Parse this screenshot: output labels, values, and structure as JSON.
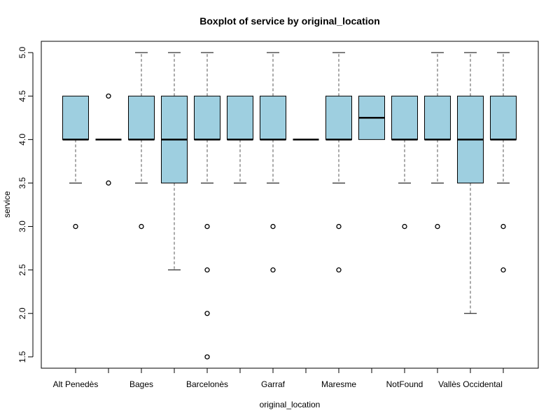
{
  "chart_data": {
    "type": "boxplot",
    "title": "Boxplot of service by original_location",
    "xlabel": "original_location",
    "ylabel": "service",
    "ylim": [
      1.37,
      5.13
    ],
    "yticks": [
      1.5,
      2.0,
      2.5,
      3.0,
      3.5,
      4.0,
      4.5,
      5.0
    ],
    "ytick_labels": [
      "1.5",
      "2.0",
      "2.5",
      "3.0",
      "3.5",
      "4.0",
      "4.5",
      "5.0"
    ],
    "box_color": "#9ecfe0",
    "categories": [
      "Alt Penedès",
      "",
      "Bages",
      "",
      "Barcelonès",
      "",
      "Garraf",
      "",
      "Maresme",
      "",
      "NotFound",
      "",
      "Vallès Occidental",
      ""
    ],
    "xtick_labels_shown": [
      "Alt Penedès",
      "Bages",
      "Barcelonès",
      "Garraf",
      "Maresme",
      "NotFound",
      "Vallès Occidental"
    ],
    "boxes": [
      {
        "whisker_low": 3.5,
        "q1": 4.0,
        "median": 4.0,
        "q3": 4.5,
        "whisker_high": 4.5,
        "outliers": [
          3.0
        ]
      },
      {
        "whisker_low": 4.0,
        "q1": 4.0,
        "median": 4.0,
        "q3": 4.0,
        "whisker_high": 4.0,
        "outliers": [
          4.5,
          3.5
        ]
      },
      {
        "whisker_low": 3.5,
        "q1": 4.0,
        "median": 4.0,
        "q3": 4.5,
        "whisker_high": 5.0,
        "outliers": [
          3.0
        ]
      },
      {
        "whisker_low": 2.5,
        "q1": 3.5,
        "median": 4.0,
        "q3": 4.5,
        "whisker_high": 5.0,
        "outliers": []
      },
      {
        "whisker_low": 3.5,
        "q1": 4.0,
        "median": 4.0,
        "q3": 4.5,
        "whisker_high": 5.0,
        "outliers": [
          3.0,
          2.5,
          2.0,
          1.5
        ]
      },
      {
        "whisker_low": 3.5,
        "q1": 4.0,
        "median": 4.0,
        "q3": 4.5,
        "whisker_high": 4.5,
        "outliers": []
      },
      {
        "whisker_low": 3.5,
        "q1": 4.0,
        "median": 4.0,
        "q3": 4.5,
        "whisker_high": 5.0,
        "outliers": [
          3.0,
          2.5
        ]
      },
      {
        "whisker_low": 4.0,
        "q1": 4.0,
        "median": 4.0,
        "q3": 4.0,
        "whisker_high": 4.0,
        "outliers": []
      },
      {
        "whisker_low": 3.5,
        "q1": 4.0,
        "median": 4.0,
        "q3": 4.5,
        "whisker_high": 5.0,
        "outliers": [
          3.0,
          2.5
        ]
      },
      {
        "whisker_low": 4.0,
        "q1": 4.0,
        "median": 4.25,
        "q3": 4.5,
        "whisker_high": 4.5,
        "outliers": []
      },
      {
        "whisker_low": 3.5,
        "q1": 4.0,
        "median": 4.0,
        "q3": 4.5,
        "whisker_high": 4.5,
        "outliers": [
          3.0
        ]
      },
      {
        "whisker_low": 3.5,
        "q1": 4.0,
        "median": 4.0,
        "q3": 4.5,
        "whisker_high": 5.0,
        "outliers": [
          3.0
        ]
      },
      {
        "whisker_low": 2.0,
        "q1": 3.5,
        "median": 4.0,
        "q3": 4.5,
        "whisker_high": 5.0,
        "outliers": []
      },
      {
        "whisker_low": 3.5,
        "q1": 4.0,
        "median": 4.0,
        "q3": 4.5,
        "whisker_high": 5.0,
        "outliers": [
          3.0,
          2.5
        ]
      }
    ]
  }
}
